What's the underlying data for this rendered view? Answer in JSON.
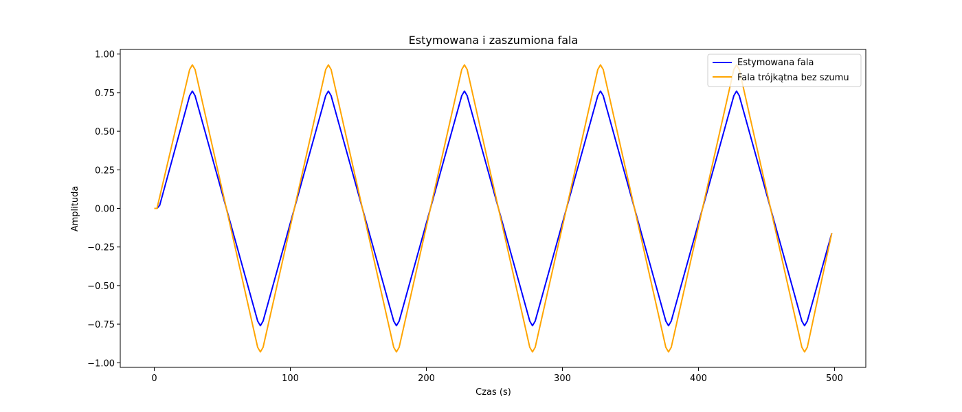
{
  "chart_data": {
    "type": "line",
    "title": "Estymowana i zaszumiona fala",
    "xlabel": "Czas (s)",
    "ylabel": "Amplituda",
    "xlim": [
      -25,
      523
    ],
    "ylim": [
      -1.03,
      1.03
    ],
    "xticks": [
      0,
      100,
      200,
      300,
      400,
      500
    ],
    "yticks": [
      -1.0,
      -0.75,
      -0.5,
      -0.25,
      0.0,
      0.25,
      0.5,
      0.75,
      1.0
    ],
    "ytick_labels": [
      "−1.00",
      "−0.75",
      "−0.50",
      "−0.25",
      "0.00",
      "0.25",
      "0.50",
      "0.75",
      "1.00"
    ],
    "legend_position": "top-right",
    "grid": false,
    "series": [
      {
        "name": "Estymowana fala",
        "color": "#0000ff",
        "x": [
          0,
          2,
          4,
          26,
          28,
          30,
          76,
          78,
          80,
          126,
          128,
          130,
          176,
          178,
          180,
          226,
          228,
          230,
          276,
          278,
          280,
          326,
          328,
          330,
          376,
          378,
          380,
          426,
          428,
          430,
          476,
          478,
          480,
          498
        ],
        "y": [
          0.0,
          0.0,
          0.02,
          0.73,
          0.76,
          0.73,
          -0.73,
          -0.76,
          -0.73,
          0.73,
          0.76,
          0.73,
          -0.73,
          -0.76,
          -0.73,
          0.73,
          0.76,
          0.73,
          -0.73,
          -0.76,
          -0.73,
          0.73,
          0.76,
          0.73,
          -0.73,
          -0.76,
          -0.73,
          0.73,
          0.76,
          0.73,
          -0.73,
          -0.76,
          -0.73,
          -0.16
        ]
      },
      {
        "name": "Fala trójkątna bez szumu",
        "color": "#ffa500",
        "x": [
          0,
          2,
          26,
          28,
          30,
          76,
          78,
          80,
          126,
          128,
          130,
          176,
          178,
          180,
          226,
          228,
          230,
          276,
          278,
          280,
          326,
          328,
          330,
          376,
          378,
          380,
          426,
          428,
          430,
          476,
          478,
          480,
          498
        ],
        "y": [
          0.0,
          0.0,
          0.9,
          0.93,
          0.9,
          -0.9,
          -0.93,
          -0.9,
          0.9,
          0.93,
          0.9,
          -0.9,
          -0.93,
          -0.9,
          0.9,
          0.93,
          0.9,
          -0.9,
          -0.93,
          -0.9,
          0.9,
          0.93,
          0.9,
          -0.9,
          -0.93,
          -0.9,
          0.9,
          0.93,
          0.9,
          -0.9,
          -0.93,
          -0.9,
          -0.16
        ]
      }
    ]
  }
}
